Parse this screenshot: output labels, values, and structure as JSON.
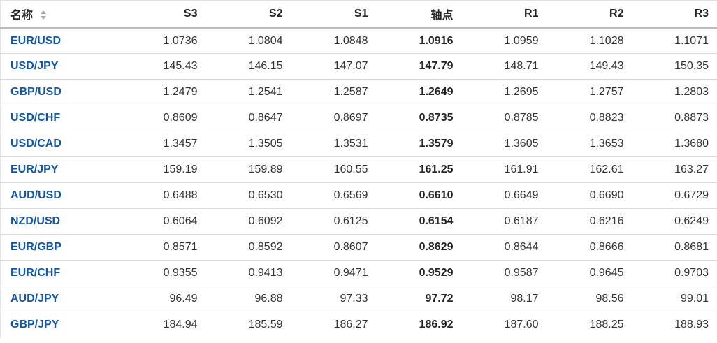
{
  "colors": {
    "pair_link_blue": "#1256a0",
    "header_text": "#232526",
    "number_text": "#333333",
    "row_border": "#dbdbdb",
    "header_underline": "#b7b9bc",
    "sort_icon_gray": "#a9a9a9"
  },
  "table": {
    "headers": [
      "名称",
      "S3",
      "S2",
      "S1",
      "轴点",
      "R1",
      "R2",
      "R3"
    ],
    "sort_icon": "up-down-arrows",
    "rows": [
      [
        "EUR/USD",
        "1.0736",
        "1.0804",
        "1.0848",
        "1.0916",
        "1.0959",
        "1.1028",
        "1.1071"
      ],
      [
        "USD/JPY",
        "145.43",
        "146.15",
        "147.07",
        "147.79",
        "148.71",
        "149.43",
        "150.35"
      ],
      [
        "GBP/USD",
        "1.2479",
        "1.2541",
        "1.2587",
        "1.2649",
        "1.2695",
        "1.2757",
        "1.2803"
      ],
      [
        "USD/CHF",
        "0.8609",
        "0.8647",
        "0.8697",
        "0.8735",
        "0.8785",
        "0.8823",
        "0.8873"
      ],
      [
        "USD/CAD",
        "1.3457",
        "1.3505",
        "1.3531",
        "1.3579",
        "1.3605",
        "1.3653",
        "1.3680"
      ],
      [
        "EUR/JPY",
        "159.19",
        "159.89",
        "160.55",
        "161.25",
        "161.91",
        "162.61",
        "163.27"
      ],
      [
        "AUD/USD",
        "0.6488",
        "0.6530",
        "0.6569",
        "0.6610",
        "0.6649",
        "0.6690",
        "0.6729"
      ],
      [
        "NZD/USD",
        "0.6064",
        "0.6092",
        "0.6125",
        "0.6154",
        "0.6187",
        "0.6216",
        "0.6249"
      ],
      [
        "EUR/GBP",
        "0.8571",
        "0.8592",
        "0.8607",
        "0.8629",
        "0.8644",
        "0.8666",
        "0.8681"
      ],
      [
        "EUR/CHF",
        "0.9355",
        "0.9413",
        "0.9471",
        "0.9529",
        "0.9587",
        "0.9645",
        "0.9703"
      ],
      [
        "AUD/JPY",
        "96.49",
        "96.88",
        "97.33",
        "97.72",
        "98.17",
        "98.56",
        "99.01"
      ],
      [
        "GBP/JPY",
        "184.94",
        "185.59",
        "186.27",
        "186.92",
        "187.60",
        "188.25",
        "188.93"
      ]
    ]
  }
}
